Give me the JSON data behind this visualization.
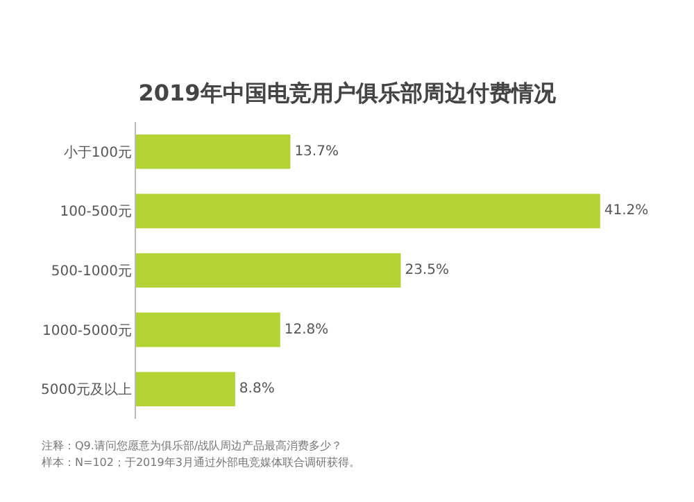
{
  "chart_data": {
    "type": "bar",
    "orientation": "horizontal",
    "title": "2019年中国电竞用户俱乐部周边付费情况",
    "categories": [
      "小于100元",
      "100-500元",
      "500-1000元",
      "1000-5000元",
      "5000元及以上"
    ],
    "values": [
      13.7,
      41.2,
      23.5,
      12.8,
      8.8
    ],
    "value_labels": [
      "13.7%",
      "41.2%",
      "23.5%",
      "12.8%",
      "8.8%"
    ],
    "color": "#b3d335",
    "grid": false,
    "legend": false,
    "tick_labels": "y",
    "annotations": [
      "注释：Q9.请问您愿意为俱乐部/战队周边产品最高消费多少？",
      "样本：N=102；于2019年3月通过外部电竞媒体联合调研获得。"
    ]
  }
}
